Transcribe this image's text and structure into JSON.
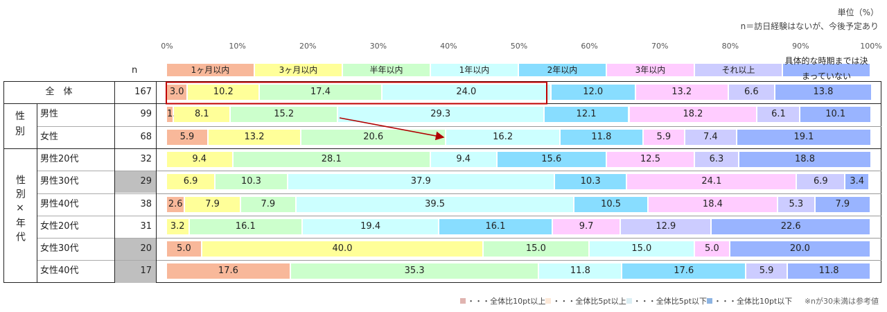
{
  "header": {
    "unit": "単位（%）",
    "note": "n＝訪日経験はないが、今後予定あり",
    "n_label": "n"
  },
  "chart_data": {
    "type": "bar",
    "orientation": "horizontal",
    "stacked": true,
    "xlim": [
      0,
      100
    ],
    "ticks": [
      "0%",
      "10%",
      "20%",
      "30%",
      "40%",
      "50%",
      "60%",
      "70%",
      "80%",
      "90%",
      "100%"
    ],
    "categories_legend": [
      "1ヶ月以内",
      "3ヶ月以内",
      "半年以内",
      "1年以内",
      "2年以内",
      "3年以内",
      "それ以上",
      "具体的な時期までは決まっていない"
    ],
    "colors": [
      "#f8b89a",
      "#ffff99",
      "#ccffcc",
      "#ccffff",
      "#88ddff",
      "#ffccff",
      "#ccccff",
      "#99b4ff"
    ],
    "rows": [
      {
        "group": "",
        "label": "全　体",
        "n": "167",
        "values": [
          3.0,
          10.2,
          17.4,
          24.0,
          12.0,
          13.2,
          6.6,
          13.8
        ],
        "low_n": false
      },
      {
        "group": "性別",
        "label": "男性",
        "n": "99",
        "values": [
          1.0,
          8.1,
          15.2,
          29.3,
          12.1,
          18.2,
          6.1,
          10.1
        ],
        "low_n": false
      },
      {
        "group": "性別",
        "label": "女性",
        "n": "68",
        "values": [
          5.9,
          13.2,
          20.6,
          16.2,
          11.8,
          5.9,
          7.4,
          19.1
        ],
        "low_n": false
      },
      {
        "group": "性別×年代",
        "label": "男性20代",
        "n": "32",
        "values": [
          0,
          9.4,
          28.1,
          9.4,
          15.6,
          12.5,
          6.3,
          18.8
        ],
        "low_n": false
      },
      {
        "group": "性別×年代",
        "label": "男性30代",
        "n": "29",
        "values": [
          0,
          6.9,
          10.3,
          37.9,
          10.3,
          24.1,
          6.9,
          3.4
        ],
        "low_n": true
      },
      {
        "group": "性別×年代",
        "label": "男性40代",
        "n": "38",
        "values": [
          2.6,
          7.9,
          7.9,
          39.5,
          10.5,
          18.4,
          5.3,
          7.9
        ],
        "low_n": false
      },
      {
        "group": "性別×年代",
        "label": "女性20代",
        "n": "31",
        "values": [
          0,
          3.2,
          16.1,
          19.4,
          16.1,
          9.7,
          12.9,
          22.6
        ],
        "low_n": false
      },
      {
        "group": "性別×年代",
        "label": "女性30代",
        "n": "20",
        "values": [
          5.0,
          40.0,
          15.0,
          15.0,
          0,
          5.0,
          0,
          20.0
        ],
        "low_n": true
      },
      {
        "group": "性別×年代",
        "label": "女性40代",
        "n": "17",
        "values": [
          17.6,
          0,
          35.3,
          11.8,
          17.6,
          0,
          5.9,
          11.8
        ],
        "low_n": true
      }
    ],
    "group_labels": {
      "gender": "性別",
      "gender_age": [
        "性",
        "別",
        "×",
        "年",
        "代"
      ]
    },
    "highlight": "red box around 全体 first four segments; arrow from 男性 to 女性"
  },
  "footer": {
    "items": [
      {
        "color": "#e0b4b0",
        "label": "・・・全体比10pt以上"
      },
      {
        "color": "#fde9d9",
        "label": "・・・全体比5pt以上"
      },
      {
        "color": "#dbeef3",
        "label": "・・・全体比5pt以下"
      },
      {
        "color": "#8db4e2",
        "label": "・・・全体比10pt以下"
      }
    ],
    "note": "※nが30未満は参考値"
  }
}
